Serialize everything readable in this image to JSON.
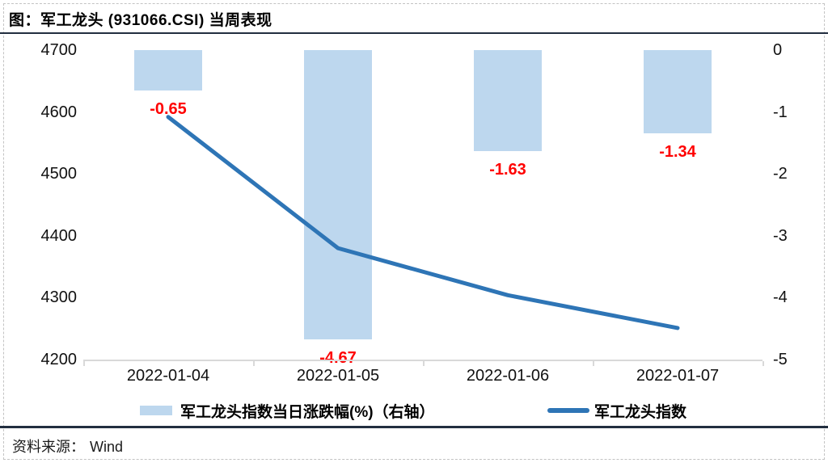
{
  "header": {
    "title": "图：军工龙头 (931066.CSI) 当周表现"
  },
  "chart_data": {
    "type": "combo",
    "title": "图：军工龙头 (931066.CSI) 当周表现",
    "categories": [
      "2022-01-04",
      "2022-01-05",
      "2022-01-06",
      "2022-01-07"
    ],
    "series": [
      {
        "name": "军工龙头指数当日涨跌幅(%)（右轴）",
        "type": "bar",
        "axis": "right",
        "values": [
          -0.65,
          -4.67,
          -1.63,
          -1.34
        ],
        "labels": [
          "-0.65",
          "-4.67",
          "-1.63",
          "-1.34"
        ],
        "color": "#BDD7EE"
      },
      {
        "name": "军工龙头指数",
        "type": "line",
        "axis": "left",
        "values": [
          4592,
          4380,
          4304,
          4251
        ],
        "color": "#2E75B6"
      }
    ],
    "left_axis": {
      "min": 4200,
      "max": 4700,
      "ticks": [
        4700,
        4600,
        4500,
        4400,
        4300,
        4200
      ]
    },
    "right_axis": {
      "min": -5,
      "max": 0,
      "ticks": [
        0,
        -1,
        -2,
        -3,
        -4,
        -5
      ]
    },
    "grid": false,
    "legend_position": "bottom",
    "colors": {
      "bar": "#BDD7EE",
      "line": "#2E75B6",
      "data_label": "#FF0000",
      "axis_line": "#D9D9D9",
      "rule": "#222E40"
    }
  },
  "footer": {
    "source_label": "资料来源：",
    "source_value": "Wind"
  }
}
